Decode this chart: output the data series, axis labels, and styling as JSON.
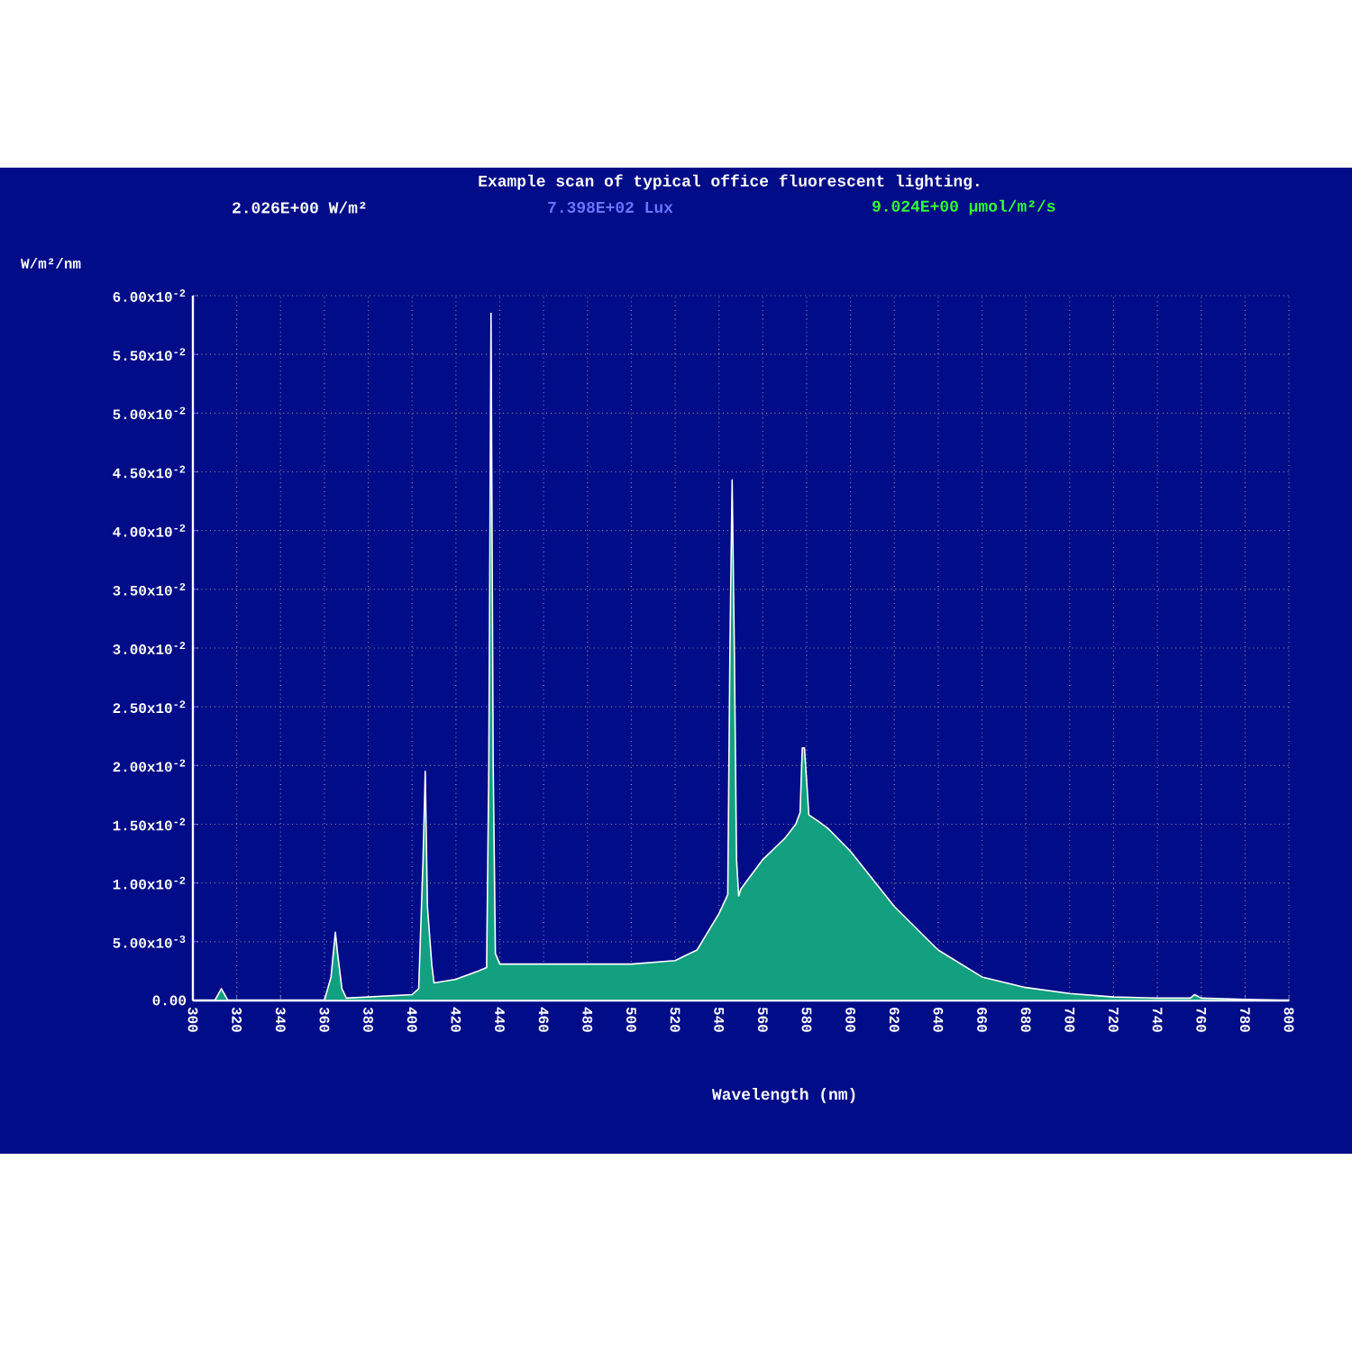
{
  "chart_data": {
    "type": "area",
    "title": "Example scan of typical office fluorescent lighting.",
    "annotations": [
      "2.026E+00  W/m²",
      "7.398E+02  Lux",
      "9.024E+00  µmol/m²/s"
    ],
    "xlabel": "Wavelength (nm)",
    "ylabel": "W/m²/nm",
    "x": [
      300,
      310,
      313,
      316,
      320,
      340,
      360,
      363,
      365,
      366,
      368,
      370,
      380,
      400,
      403,
      405,
      406,
      407,
      409,
      410,
      420,
      430,
      434,
      435,
      436,
      437,
      438,
      440,
      460,
      480,
      500,
      520,
      530,
      540,
      544,
      545,
      546,
      547,
      548,
      549,
      550,
      560,
      570,
      575,
      577,
      578,
      579,
      581,
      585,
      590,
      600,
      620,
      640,
      660,
      680,
      700,
      720,
      740,
      755,
      757,
      760,
      780,
      800
    ],
    "series": [
      {
        "color": "#12a080",
        "values": [
          0,
          0,
          0.001,
          0,
          0,
          0,
          0,
          0.002,
          0.0058,
          0.004,
          0.001,
          0.0002,
          0.0003,
          0.0005,
          0.001,
          0.012,
          0.0195,
          0.008,
          0.003,
          0.0015,
          0.0018,
          0.0025,
          0.0028,
          0.02,
          0.0585,
          0.02,
          0.004,
          0.0031,
          0.0031,
          0.0031,
          0.0031,
          0.0034,
          0.0043,
          0.0074,
          0.009,
          0.03,
          0.0443,
          0.03,
          0.012,
          0.0089,
          0.0095,
          0.012,
          0.0138,
          0.015,
          0.016,
          0.0215,
          0.0215,
          0.0158,
          0.0153,
          0.0146,
          0.0127,
          0.008,
          0.0043,
          0.002,
          0.0011,
          0.0006,
          0.0003,
          0.0002,
          0.0002,
          0.0005,
          0.0002,
          0.0001,
          0
        ]
      }
    ],
    "xlim": [
      300,
      800
    ],
    "ylim": [
      0,
      0.06
    ],
    "xticks": [
      300,
      320,
      340,
      360,
      380,
      400,
      420,
      440,
      460,
      480,
      500,
      520,
      540,
      560,
      580,
      600,
      620,
      640,
      660,
      680,
      700,
      720,
      740,
      760,
      780,
      800
    ],
    "yticks": [
      {
        "value": 0,
        "label": "0.00"
      },
      {
        "value": 0.005,
        "label": "5.00x10$^{-3}$"
      },
      {
        "value": 0.01,
        "label": "1.00x10$^{-2}$"
      },
      {
        "value": 0.015,
        "label": "1.50x10$^{-2}$"
      },
      {
        "value": 0.02,
        "label": "2.00x10$^{-2}$"
      },
      {
        "value": 0.025,
        "label": "2.50x10$^{-2}$"
      },
      {
        "value": 0.03,
        "label": "3.00x10$^{-2}$"
      },
      {
        "value": 0.035,
        "label": "3.50x10$^{-2}$"
      },
      {
        "value": 0.04,
        "label": "4.00x10$^{-2}$"
      },
      {
        "value": 0.045,
        "label": "4.50x10$^{-2}$"
      },
      {
        "value": 0.05,
        "label": "5.00x10$^{-2}$"
      },
      {
        "value": 0.055,
        "label": "5.50x10$^{-2}$"
      },
      {
        "value": 0.06,
        "label": "6.00x10$^{-2}$"
      }
    ],
    "grid": true
  }
}
